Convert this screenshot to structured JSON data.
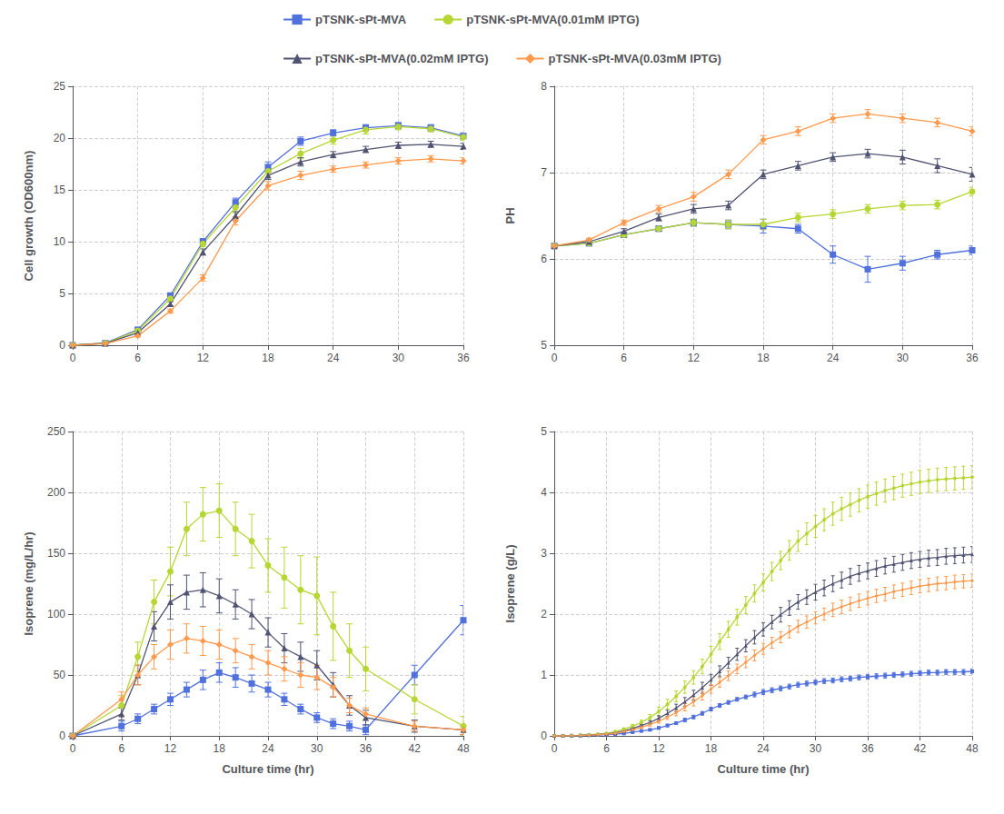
{
  "chart_data": [
    {
      "type": "line",
      "ylabel": "Cell growth (OD600nm)",
      "grid": true,
      "legend": "top",
      "x": [
        0,
        3,
        6,
        9,
        12,
        15,
        18,
        21,
        24,
        27,
        30,
        33,
        36
      ],
      "xlim": [
        0,
        36
      ],
      "xticks": [
        0,
        6,
        12,
        18,
        24,
        30,
        36
      ],
      "ylim": [
        0,
        25
      ],
      "yticks": [
        0,
        5,
        10,
        15,
        20,
        25
      ],
      "series": [
        {
          "name": "pTSNK-sPt-MVA",
          "marker": "square",
          "values": [
            0,
            0.2,
            1.5,
            4.8,
            10.0,
            13.8,
            17.2,
            19.7,
            20.5,
            21.0,
            21.2,
            21.0,
            20.2
          ],
          "errors": [
            0,
            0.05,
            0.1,
            0.2,
            0.3,
            0.4,
            0.5,
            0.4,
            0.3,
            0.3,
            0.3,
            0.3,
            0.3
          ]
        },
        {
          "name": "pTSNK-sPt-MVA(0.01mM IPTG)",
          "marker": "circle",
          "values": [
            0,
            0.2,
            1.4,
            4.5,
            9.8,
            13.3,
            16.8,
            18.5,
            19.8,
            20.8,
            21.1,
            20.9,
            20.1
          ],
          "errors": [
            0,
            0.05,
            0.1,
            0.2,
            0.3,
            0.5,
            0.6,
            0.5,
            0.4,
            0.4,
            0.3,
            0.3,
            0.3
          ]
        },
        {
          "name": "pTSNK-sPt-MVA(0.02mM IPTG)",
          "marker": "triangle",
          "values": [
            0,
            0.18,
            1.2,
            4.0,
            9.0,
            12.5,
            16.4,
            17.7,
            18.4,
            18.9,
            19.3,
            19.4,
            19.2
          ],
          "errors": [
            0,
            0.05,
            0.1,
            0.2,
            0.3,
            0.4,
            0.4,
            0.4,
            0.3,
            0.3,
            0.3,
            0.3,
            0.3
          ]
        },
        {
          "name": "pTSNK-sPt-MVA(0.03mM IPTG)",
          "marker": "diamond",
          "values": [
            0,
            0.15,
            0.9,
            3.3,
            6.5,
            12.0,
            15.4,
            16.4,
            17.0,
            17.4,
            17.8,
            18.0,
            17.8
          ],
          "errors": [
            0,
            0.05,
            0.1,
            0.2,
            0.3,
            0.4,
            0.4,
            0.4,
            0.3,
            0.3,
            0.3,
            0.3,
            0.3
          ]
        }
      ]
    },
    {
      "type": "line",
      "ylabel": "PH",
      "grid": true,
      "x": [
        0,
        3,
        6,
        9,
        12,
        15,
        18,
        21,
        24,
        27,
        30,
        33,
        36
      ],
      "xlim": [
        0,
        36
      ],
      "xticks": [
        0,
        6,
        12,
        18,
        24,
        30,
        36
      ],
      "ylim": [
        5,
        8
      ],
      "yticks": [
        5,
        6,
        7,
        8
      ],
      "series": [
        {
          "name": "pTSNK-sPt-MVA",
          "marker": "square",
          "values": [
            6.15,
            6.18,
            6.28,
            6.35,
            6.42,
            6.4,
            6.38,
            6.35,
            6.05,
            5.88,
            5.95,
            6.05,
            6.1
          ],
          "errors": [
            0.02,
            0.02,
            0.03,
            0.03,
            0.04,
            0.05,
            0.08,
            0.05,
            0.1,
            0.15,
            0.08,
            0.05,
            0.05
          ]
        },
        {
          "name": "pTSNK-sPt-MVA(0.01mM IPTG)",
          "marker": "circle",
          "values": [
            6.15,
            6.18,
            6.28,
            6.35,
            6.42,
            6.4,
            6.4,
            6.48,
            6.52,
            6.58,
            6.62,
            6.63,
            6.78
          ],
          "errors": [
            0.02,
            0.02,
            0.03,
            0.03,
            0.04,
            0.05,
            0.06,
            0.05,
            0.05,
            0.05,
            0.05,
            0.05,
            0.05
          ]
        },
        {
          "name": "pTSNK-sPt-MVA(0.02mM IPTG)",
          "marker": "triangle",
          "values": [
            6.15,
            6.2,
            6.32,
            6.48,
            6.58,
            6.62,
            6.98,
            7.08,
            7.18,
            7.22,
            7.18,
            7.08,
            6.98
          ],
          "errors": [
            0.02,
            0.02,
            0.03,
            0.04,
            0.05,
            0.05,
            0.05,
            0.05,
            0.05,
            0.05,
            0.08,
            0.08,
            0.08
          ]
        },
        {
          "name": "pTSNK-sPt-MVA(0.03mM IPTG)",
          "marker": "diamond",
          "values": [
            6.15,
            6.22,
            6.42,
            6.58,
            6.72,
            6.98,
            7.38,
            7.48,
            7.63,
            7.68,
            7.63,
            7.58,
            7.48
          ],
          "errors": [
            0.02,
            0.02,
            0.03,
            0.04,
            0.05,
            0.05,
            0.05,
            0.05,
            0.05,
            0.05,
            0.05,
            0.05,
            0.05
          ]
        }
      ]
    },
    {
      "type": "line",
      "ylabel": "Isoprene (mg/L/hr)",
      "xlabel": "Culture time (hr)",
      "grid": true,
      "x": [
        0,
        6,
        8,
        10,
        12,
        14,
        16,
        18,
        20,
        22,
        24,
        26,
        28,
        30,
        32,
        34,
        36,
        42,
        48
      ],
      "xlim": [
        0,
        48
      ],
      "xticks": [
        0,
        6,
        12,
        18,
        24,
        30,
        36,
        42,
        48
      ],
      "ylim": [
        0,
        250
      ],
      "yticks": [
        0,
        50,
        100,
        150,
        200,
        250
      ],
      "series": [
        {
          "name": "pTSNK-sPt-MVA",
          "marker": "square",
          "values": [
            0,
            8,
            14,
            22,
            30,
            38,
            46,
            52,
            48,
            43,
            38,
            30,
            22,
            15,
            10,
            8,
            5,
            50,
            95
          ],
          "errors": [
            0,
            4,
            4,
            4,
            5,
            6,
            8,
            8,
            8,
            7,
            6,
            5,
            4,
            4,
            4,
            4,
            4,
            8,
            12
          ]
        },
        {
          "name": "pTSNK-sPt-MVA(0.01mM IPTG)",
          "marker": "circle",
          "values": [
            0,
            25,
            65,
            110,
            135,
            170,
            182,
            185,
            170,
            160,
            140,
            130,
            120,
            115,
            90,
            70,
            55,
            30,
            8
          ],
          "errors": [
            0,
            8,
            12,
            18,
            20,
            22,
            22,
            22,
            22,
            22,
            22,
            25,
            28,
            32,
            28,
            22,
            18,
            12,
            8
          ]
        },
        {
          "name": "pTSNK-sPt-MVA(0.02mM IPTG)",
          "marker": "triangle",
          "values": [
            0,
            18,
            50,
            90,
            110,
            118,
            120,
            115,
            108,
            100,
            85,
            72,
            65,
            58,
            42,
            25,
            15,
            8,
            5
          ],
          "errors": [
            0,
            5,
            8,
            12,
            14,
            14,
            14,
            14,
            12,
            12,
            12,
            12,
            12,
            12,
            10,
            8,
            6,
            5,
            4
          ]
        },
        {
          "name": "pTSNK-sPt-MVA(0.03mM IPTG)",
          "marker": "diamond",
          "values": [
            0,
            30,
            50,
            65,
            75,
            80,
            78,
            75,
            70,
            65,
            60,
            55,
            50,
            48,
            40,
            25,
            18,
            8,
            5
          ],
          "errors": [
            0,
            6,
            8,
            10,
            12,
            12,
            12,
            12,
            10,
            10,
            10,
            10,
            10,
            10,
            8,
            6,
            5,
            4,
            4
          ]
        }
      ]
    },
    {
      "type": "line",
      "ylabel": "Isoprene (g/L)",
      "xlabel": "Culture time (hr)",
      "grid": true,
      "x": [
        0,
        1,
        2,
        3,
        4,
        5,
        6,
        7,
        8,
        9,
        10,
        11,
        12,
        13,
        14,
        15,
        16,
        17,
        18,
        19,
        20,
        21,
        22,
        23,
        24,
        25,
        26,
        27,
        28,
        29,
        30,
        31,
        32,
        33,
        34,
        35,
        36,
        37,
        38,
        39,
        40,
        41,
        42,
        43,
        44,
        45,
        46,
        47,
        48
      ],
      "xlim": [
        0,
        48
      ],
      "xticks": [
        0,
        6,
        12,
        18,
        24,
        30,
        36,
        42,
        48
      ],
      "ylim": [
        0,
        5
      ],
      "yticks": [
        0,
        1,
        2,
        3,
        4,
        5
      ],
      "series": [
        {
          "name": "pTSNK-sPt-MVA",
          "marker": "square",
          "values": [
            0,
            0.001,
            0.003,
            0.006,
            0.01,
            0.015,
            0.02,
            0.03,
            0.04,
            0.06,
            0.08,
            0.1,
            0.13,
            0.17,
            0.21,
            0.26,
            0.31,
            0.37,
            0.44,
            0.5,
            0.55,
            0.6,
            0.64,
            0.68,
            0.72,
            0.75,
            0.78,
            0.81,
            0.84,
            0.86,
            0.88,
            0.9,
            0.91,
            0.93,
            0.94,
            0.96,
            0.97,
            0.98,
            0.99,
            1.0,
            1.01,
            1.02,
            1.03,
            1.04,
            1.04,
            1.05,
            1.05,
            1.05,
            1.06
          ],
          "errors": [
            0,
            0,
            0,
            0,
            0,
            0,
            0.01,
            0.01,
            0.01,
            0.01,
            0.01,
            0.01,
            0.02,
            0.02,
            0.02,
            0.03,
            0.03,
            0.03,
            0.03,
            0.03,
            0.03,
            0.03,
            0.03,
            0.04,
            0.04,
            0.04,
            0.04,
            0.04,
            0.04,
            0.04,
            0.04,
            0.04,
            0.04,
            0.04,
            0.04,
            0.04,
            0.04,
            0.04,
            0.04,
            0.04,
            0.04,
            0.04,
            0.04,
            0.04,
            0.04,
            0.04,
            0.04,
            0.04,
            0.04
          ]
        },
        {
          "name": "pTSNK-sPt-MVA(0.01mM IPTG)",
          "marker": "circle",
          "values": [
            0,
            0.002,
            0.005,
            0.01,
            0.018,
            0.03,
            0.04,
            0.07,
            0.11,
            0.16,
            0.22,
            0.3,
            0.4,
            0.52,
            0.65,
            0.8,
            0.96,
            1.14,
            1.34,
            1.55,
            1.75,
            1.95,
            2.15,
            2.34,
            2.52,
            2.7,
            2.88,
            3.05,
            3.2,
            3.32,
            3.44,
            3.55,
            3.65,
            3.73,
            3.8,
            3.87,
            3.93,
            3.98,
            4.03,
            4.07,
            4.11,
            4.14,
            4.17,
            4.19,
            4.21,
            4.22,
            4.23,
            4.24,
            4.25
          ],
          "errors": [
            0,
            0,
            0,
            0,
            0,
            0,
            0.01,
            0.01,
            0.02,
            0.03,
            0.04,
            0.05,
            0.07,
            0.08,
            0.09,
            0.1,
            0.11,
            0.12,
            0.13,
            0.13,
            0.13,
            0.13,
            0.14,
            0.14,
            0.14,
            0.15,
            0.15,
            0.16,
            0.17,
            0.18,
            0.18,
            0.18,
            0.19,
            0.19,
            0.19,
            0.19,
            0.19,
            0.19,
            0.19,
            0.19,
            0.19,
            0.19,
            0.19,
            0.19,
            0.19,
            0.19,
            0.19,
            0.19,
            0.19
          ]
        },
        {
          "name": "pTSNK-sPt-MVA(0.02mM IPTG)",
          "marker": "triangle",
          "values": [
            0,
            0.002,
            0.004,
            0.008,
            0.015,
            0.023,
            0.032,
            0.05,
            0.08,
            0.12,
            0.17,
            0.22,
            0.29,
            0.37,
            0.46,
            0.56,
            0.67,
            0.79,
            0.92,
            1.06,
            1.2,
            1.34,
            1.48,
            1.62,
            1.75,
            1.87,
            1.99,
            2.1,
            2.2,
            2.28,
            2.36,
            2.43,
            2.5,
            2.56,
            2.62,
            2.67,
            2.71,
            2.75,
            2.79,
            2.82,
            2.85,
            2.88,
            2.9,
            2.92,
            2.93,
            2.95,
            2.96,
            2.97,
            2.98
          ],
          "errors": [
            0,
            0,
            0,
            0,
            0,
            0,
            0.01,
            0.01,
            0.01,
            0.02,
            0.02,
            0.03,
            0.04,
            0.05,
            0.06,
            0.07,
            0.08,
            0.09,
            0.09,
            0.09,
            0.09,
            0.1,
            0.1,
            0.11,
            0.11,
            0.11,
            0.12,
            0.12,
            0.12,
            0.12,
            0.13,
            0.13,
            0.13,
            0.13,
            0.13,
            0.13,
            0.13,
            0.13,
            0.13,
            0.13,
            0.13,
            0.13,
            0.13,
            0.13,
            0.13,
            0.13,
            0.13,
            0.13,
            0.13
          ]
        },
        {
          "name": "pTSNK-sPt-MVA(0.03mM IPTG)",
          "marker": "diamond",
          "values": [
            0,
            0.001,
            0.003,
            0.006,
            0.012,
            0.019,
            0.028,
            0.04,
            0.07,
            0.1,
            0.14,
            0.19,
            0.24,
            0.31,
            0.38,
            0.47,
            0.56,
            0.66,
            0.77,
            0.88,
            0.99,
            1.1,
            1.21,
            1.32,
            1.43,
            1.53,
            1.62,
            1.71,
            1.8,
            1.87,
            1.94,
            2.0,
            2.07,
            2.12,
            2.17,
            2.22,
            2.26,
            2.3,
            2.33,
            2.37,
            2.4,
            2.43,
            2.46,
            2.48,
            2.5,
            2.51,
            2.53,
            2.54,
            2.55
          ],
          "errors": [
            0,
            0,
            0,
            0,
            0,
            0,
            0.01,
            0.01,
            0.01,
            0.02,
            0.02,
            0.03,
            0.03,
            0.04,
            0.05,
            0.06,
            0.07,
            0.07,
            0.07,
            0.08,
            0.08,
            0.08,
            0.09,
            0.09,
            0.09,
            0.09,
            0.09,
            0.1,
            0.1,
            0.1,
            0.1,
            0.1,
            0.11,
            0.11,
            0.11,
            0.11,
            0.11,
            0.11,
            0.11,
            0.11,
            0.11,
            0.11,
            0.11,
            0.11,
            0.11,
            0.11,
            0.11,
            0.11,
            0.11
          ]
        }
      ]
    }
  ]
}
